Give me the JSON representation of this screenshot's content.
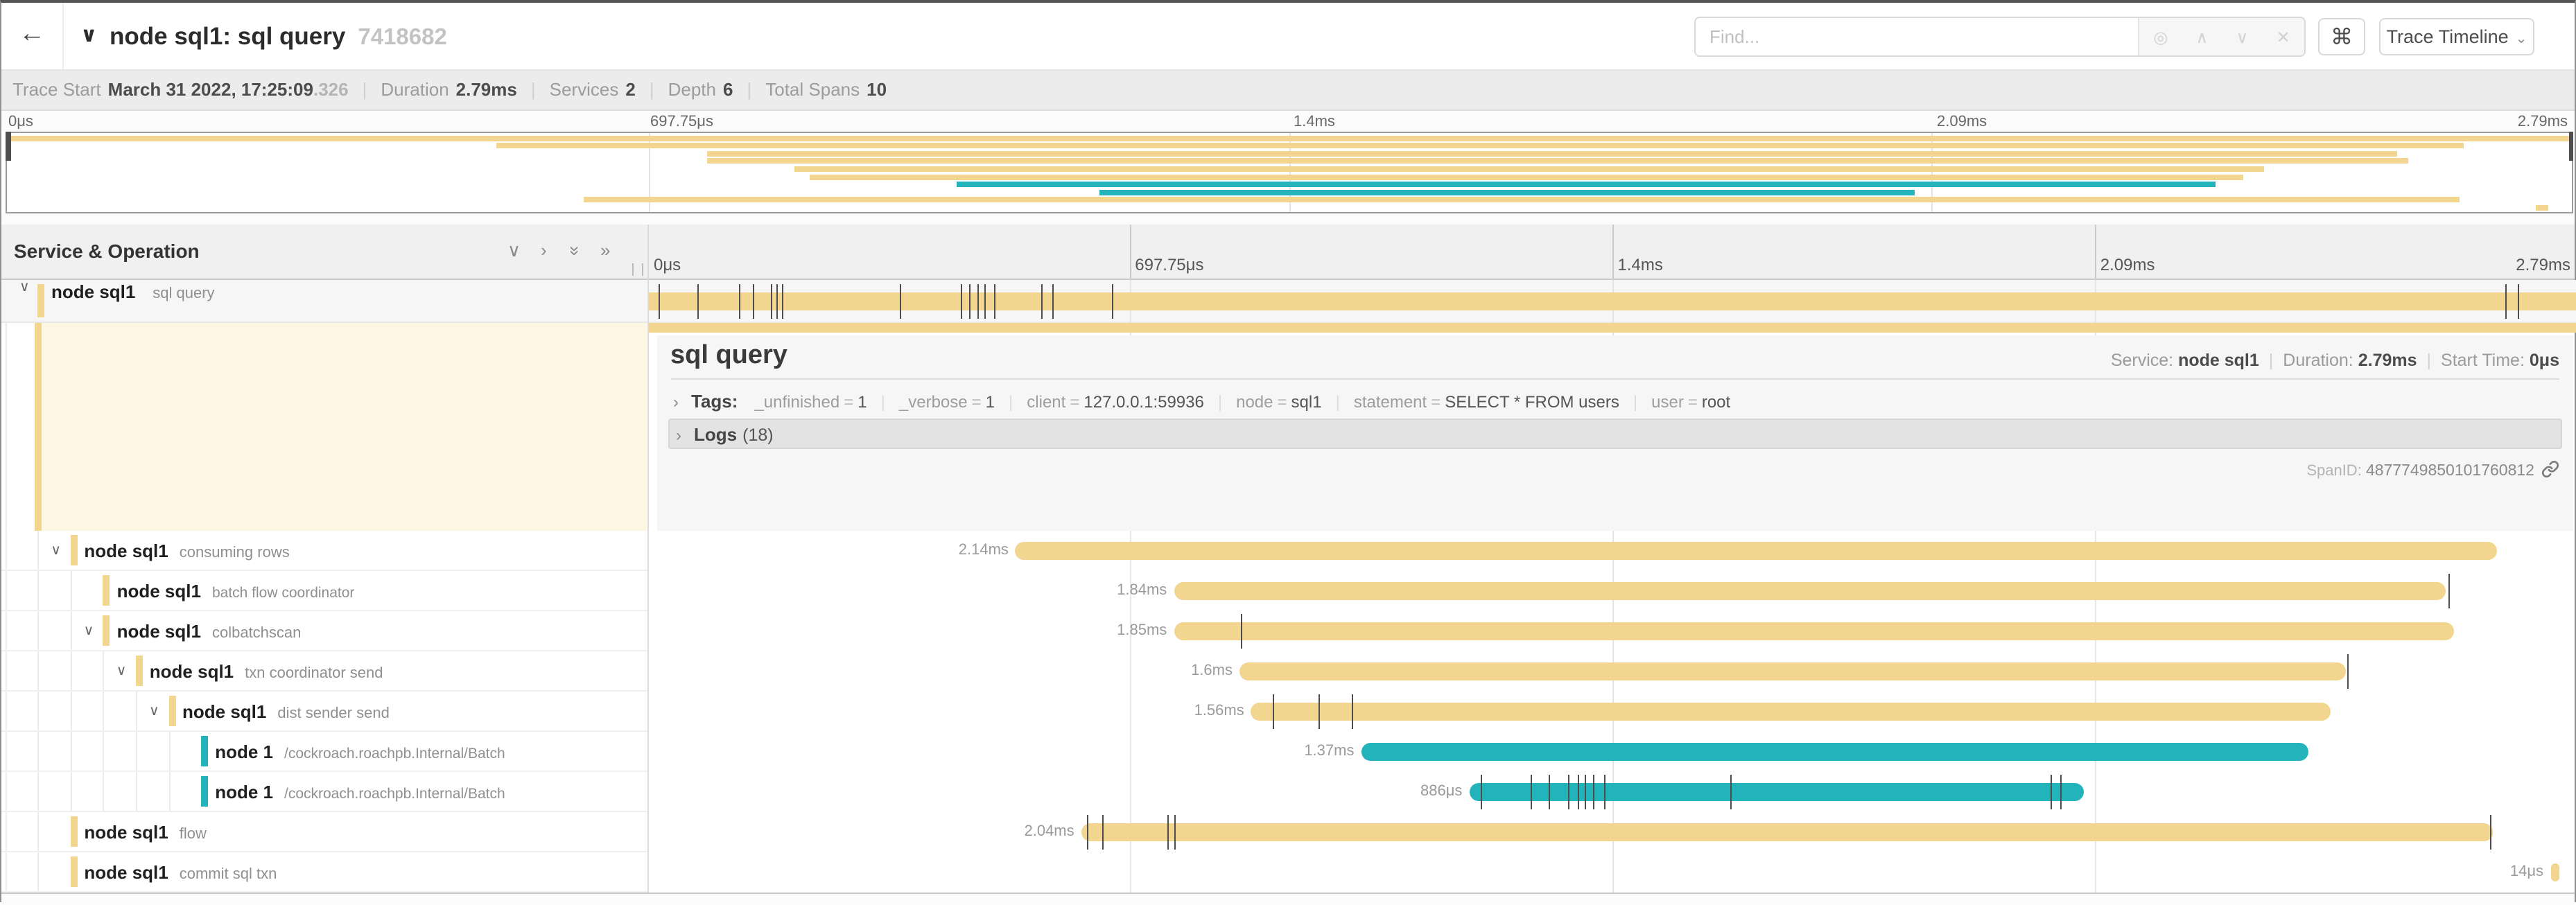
{
  "colors": {
    "yellow": "#f2d58f",
    "teal": "#23b3bb",
    "cream": "#fcf6e2"
  },
  "header": {
    "back_icon": "←",
    "collapse_chevron": "∨",
    "title": "node sql1: sql query",
    "trace_id": "7418682",
    "find_placeholder": "Find...",
    "find_icons": [
      "◎",
      "∧",
      "∨",
      "✕"
    ],
    "keyboard_shortcut_label": "⌘",
    "view_button_label": "Trace Timeline",
    "view_button_caret": "⌄"
  },
  "trace_info": {
    "items": [
      {
        "label": "Trace Start",
        "value": "March 31 2022, 17:25:09",
        "suffix": ".326"
      },
      {
        "label": "Duration",
        "value": "2.79ms"
      },
      {
        "label": "Services",
        "value": "2"
      },
      {
        "label": "Depth",
        "value": "6"
      },
      {
        "label": "Total Spans",
        "value": "10"
      }
    ]
  },
  "timeline": {
    "ticks": [
      {
        "label": "0μs",
        "pos": 0
      },
      {
        "label": "697.75μs",
        "pos": 25
      },
      {
        "label": "1.4ms",
        "pos": 50
      },
      {
        "label": "2.09ms",
        "pos": 75
      },
      {
        "label": "2.79ms",
        "pos": 100
      }
    ],
    "gridlines": [
      25,
      50,
      75
    ]
  },
  "left_panel": {
    "title": "Service & Operation",
    "icons": [
      "∨",
      "›",
      "»",
      "»"
    ]
  },
  "detail": {
    "title": "sql query",
    "service_label": "Service:",
    "service": "node sql1",
    "duration_label": "Duration:",
    "duration": "2.79ms",
    "start_label": "Start Time:",
    "start": "0μs",
    "tags_caret": "›",
    "tags_label": "Tags:",
    "tags": [
      {
        "key": "_unfinished",
        "value": "1"
      },
      {
        "key": "_verbose",
        "value": "1"
      },
      {
        "key": "client",
        "value": "127.0.0.1:59936"
      },
      {
        "key": "node",
        "value": "sql1"
      },
      {
        "key": "statement",
        "value": "SELECT * FROM users"
      },
      {
        "key": "user",
        "value": "root"
      }
    ],
    "logs_caret": "›",
    "logs_label": "Logs",
    "logs_count": "(18)",
    "spanid_label": "SpanID: ",
    "spanid": "4877749850101760812"
  },
  "spans": [
    {
      "service": "node sql1",
      "operation": "sql query",
      "indent": 0,
      "chevron": true,
      "color": "yellow",
      "start": 0,
      "width": 100,
      "duration_label": "",
      "ticks": [
        0.6,
        2.6,
        4.8,
        5.5,
        6.4,
        6.7,
        7.0,
        13.1,
        16.3,
        16.7,
        17.1,
        17.5,
        18.0,
        20.4,
        21.0,
        24.1,
        96.3,
        96.9
      ]
    },
    {
      "service": "node sql1",
      "operation": "consuming rows",
      "indent": 1,
      "chevron": true,
      "color": "yellow",
      "start": 19.1,
      "width": 76.7,
      "duration_label": "2.14ms",
      "ticks": []
    },
    {
      "service": "node sql1",
      "operation": "batch flow coordinator",
      "indent": 2,
      "chevron": false,
      "color": "yellow",
      "start": 27.3,
      "width": 65.9,
      "duration_label": "1.84ms",
      "ticks": [
        93.3
      ]
    },
    {
      "service": "node sql1",
      "operation": "colbatchscan",
      "indent": 2,
      "chevron": true,
      "color": "yellow",
      "start": 27.3,
      "width": 66.3,
      "duration_label": "1.85ms",
      "ticks": [
        30.8
      ]
    },
    {
      "service": "node sql1",
      "operation": "txn coordinator send",
      "indent": 3,
      "chevron": true,
      "color": "yellow",
      "start": 30.7,
      "width": 57.3,
      "duration_label": "1.6ms",
      "ticks": [
        88.1
      ]
    },
    {
      "service": "node sql1",
      "operation": "dist sender send",
      "indent": 4,
      "chevron": true,
      "color": "yellow",
      "start": 31.3,
      "width": 55.9,
      "duration_label": "1.56ms",
      "ticks": [
        32.4,
        34.8,
        36.5
      ]
    },
    {
      "service": "node 1",
      "operation": "/cockroach.roachpb.Internal/Batch",
      "indent": 5,
      "chevron": false,
      "color": "teal",
      "start": 37.0,
      "width": 49.1,
      "duration_label": "1.37ms",
      "ticks": []
    },
    {
      "service": "node 1",
      "operation": "/cockroach.roachpb.Internal/Batch",
      "indent": 5,
      "chevron": false,
      "color": "teal",
      "start": 42.6,
      "width": 31.8,
      "duration_label": "886μs",
      "ticks": [
        43.2,
        45.8,
        46.7,
        47.7,
        48.2,
        48.6,
        49.0,
        49.6,
        56.1,
        72.7,
        73.2
      ]
    },
    {
      "service": "node sql1",
      "operation": "flow",
      "indent": 1,
      "chevron": false,
      "color": "yellow",
      "start": 22.5,
      "width": 73.1,
      "duration_label": "2.04ms",
      "ticks": [
        22.8,
        23.6,
        27.0,
        27.3,
        95.5
      ]
    },
    {
      "service": "node sql1",
      "operation": "commit sql txn",
      "indent": 1,
      "chevron": false,
      "color": "yellow",
      "start": 98.6,
      "width": 0.5,
      "duration_label": "14μs",
      "ticks": []
    }
  ]
}
